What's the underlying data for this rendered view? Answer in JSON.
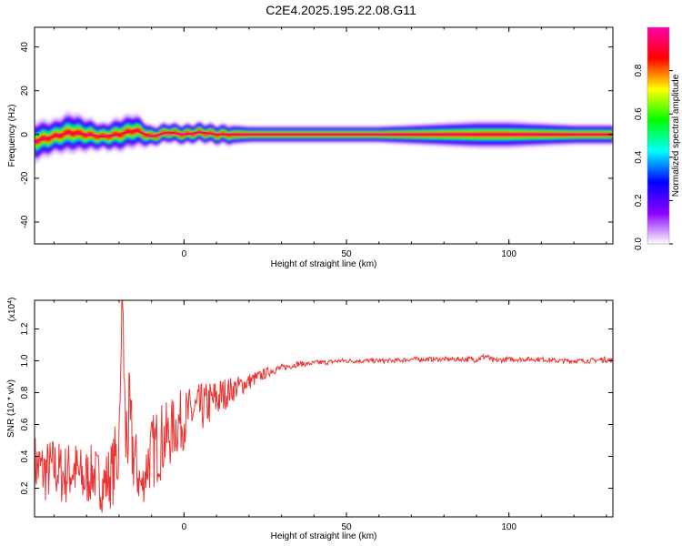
{
  "title": "C2E4.2025.195.22.08.G11",
  "chart_data": [
    {
      "type": "heatmap",
      "xlabel": "Height of straight line (km)",
      "ylabel": "Frequency (Hz)",
      "xlim": [
        -46,
        132
      ],
      "ylim": [
        -50,
        49
      ],
      "xticks": [
        0,
        50,
        100
      ],
      "yticks": [
        -40,
        -20,
        0,
        20,
        40
      ],
      "grid": false,
      "colorbar": {
        "label": "Normalized spectral amplitude",
        "range": [
          0,
          1
        ],
        "ticks": [
          "0.0",
          "0.2",
          "0.4",
          "0.6",
          "0.8"
        ],
        "colors": [
          "#ffffff",
          "#8a00ff",
          "#0000ff",
          "#00ffff",
          "#00ff00",
          "#ffff00",
          "#ff0000",
          "#ff00aa"
        ]
      },
      "ridge": {
        "x": [
          -46,
          -40,
          -35,
          -30,
          -25,
          -20,
          -15,
          -10,
          -5,
          0,
          5,
          10,
          15,
          20,
          30,
          40,
          50,
          60,
          70,
          80,
          90,
          100,
          110,
          120,
          132
        ],
        "center_hz": [
          -3,
          -1,
          1,
          0,
          -1,
          0,
          2,
          -1,
          1,
          0,
          1,
          0,
          0,
          0,
          0,
          0,
          0,
          0,
          0,
          0,
          0,
          0,
          0,
          0,
          0
        ],
        "halfwidth_hz": [
          6,
          5,
          6,
          5,
          4,
          5,
          5,
          3,
          3,
          3,
          3,
          3,
          3,
          2.5,
          2.5,
          2.5,
          2.5,
          2.5,
          3,
          3.5,
          4,
          4,
          3.5,
          3,
          3
        ]
      }
    },
    {
      "type": "line",
      "xlabel": "Height of straight line (km)",
      "ylabel": "SNR (10 * v/v)",
      "y_multiplier": "(x10",
      "y_exponent": "4",
      "y_multiplier_close": ")",
      "xlim": [
        -46,
        132
      ],
      "ylim": [
        0.02,
        1.38
      ],
      "xticks": [
        0,
        50,
        100
      ],
      "yticks": [
        0.2,
        0.4,
        0.6,
        0.8,
        1.0,
        1.2
      ],
      "yticklabels": [
        "0.2",
        "0.4",
        "0.6",
        "0.8",
        "1.0",
        "1.2"
      ],
      "grid": false,
      "series": [
        {
          "color": "#ee3333",
          "x": [
            -46,
            -43,
            -40,
            -37,
            -34,
            -31,
            -28,
            -25,
            -22,
            -20,
            -19,
            -18,
            -17,
            -15,
            -13,
            -11,
            -9,
            -7,
            -5,
            -3,
            -1,
            1,
            3,
            5,
            7,
            9,
            11,
            13,
            15,
            17,
            19,
            21,
            23,
            25,
            27,
            29,
            31,
            33,
            35,
            38,
            41,
            44,
            48,
            52,
            56,
            60,
            65,
            70,
            75,
            80,
            85,
            90,
            93,
            95,
            100,
            105,
            110,
            115,
            120,
            125,
            130,
            132
          ],
          "y": [
            0.35,
            0.3,
            0.33,
            0.28,
            0.32,
            0.25,
            0.3,
            0.22,
            0.3,
            0.45,
            1.36,
            0.5,
            0.6,
            0.35,
            0.2,
            0.38,
            0.45,
            0.5,
            0.52,
            0.58,
            0.62,
            0.65,
            0.68,
            0.7,
            0.72,
            0.75,
            0.77,
            0.8,
            0.82,
            0.84,
            0.86,
            0.88,
            0.9,
            0.92,
            0.94,
            0.95,
            0.96,
            0.97,
            0.98,
            0.98,
            0.99,
            0.99,
            1.0,
            1.0,
            1.0,
            1.0,
            1.0,
            1.01,
            1.01,
            1.01,
            1.01,
            1.01,
            1.03,
            1.0,
            1.01,
            1.01,
            1.01,
            1.0,
            1.0,
            1.0,
            1.01,
            1.0
          ],
          "noise": [
            0.2,
            0.2,
            0.2,
            0.2,
            0.2,
            0.2,
            0.18,
            0.18,
            0.22,
            0.3,
            0.1,
            0.35,
            0.35,
            0.25,
            0.12,
            0.22,
            0.25,
            0.25,
            0.22,
            0.2,
            0.2,
            0.18,
            0.17,
            0.16,
            0.15,
            0.14,
            0.13,
            0.1,
            0.08,
            0.07,
            0.06,
            0.05,
            0.04,
            0.035,
            0.03,
            0.025,
            0.02,
            0.02,
            0.02,
            0.015,
            0.015,
            0.015,
            0.015,
            0.015,
            0.015,
            0.015,
            0.015,
            0.015,
            0.015,
            0.015,
            0.015,
            0.02,
            0.02,
            0.02,
            0.015,
            0.015,
            0.015,
            0.015,
            0.015,
            0.015,
            0.02,
            0.015
          ]
        }
      ]
    }
  ]
}
